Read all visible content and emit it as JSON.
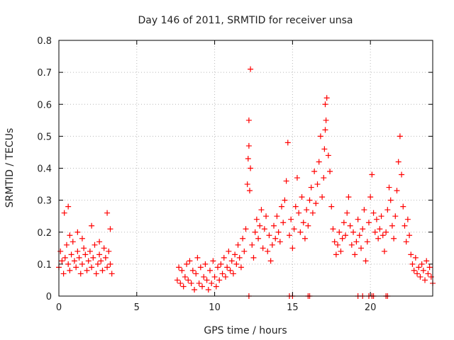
{
  "chart_data": {
    "type": "scatter",
    "title": "Day 146 of 2011, SRMTID for receiver unsa",
    "xlabel": "GPS time / hours",
    "ylabel": "SRMTID / TECUs",
    "xlim": [
      0,
      24
    ],
    "ylim": [
      0,
      0.8
    ],
    "xticks": [
      0,
      5,
      10,
      15,
      20
    ],
    "yticks": [
      0,
      0.1,
      0.2,
      0.3,
      0.4,
      0.5,
      0.6,
      0.7,
      0.8
    ],
    "xtick_labels": [
      "0",
      "5",
      "10",
      "15",
      "20"
    ],
    "ytick_labels": [
      "0",
      "0.1",
      "0.2",
      "0.3",
      "0.4",
      "0.5",
      "0.6",
      "0.7",
      "0.8"
    ],
    "grid": true,
    "marker": "+",
    "color": "#ff0000",
    "series": [
      {
        "name": "SRMTID",
        "x": [
          0.0,
          0.1,
          0.2,
          0.3,
          0.4,
          0.5,
          0.6,
          0.7,
          0.8,
          0.9,
          1.0,
          1.1,
          1.2,
          1.3,
          1.4,
          1.5,
          1.6,
          1.7,
          1.8,
          1.9,
          2.0,
          2.1,
          2.2,
          2.3,
          2.4,
          2.5,
          2.6,
          2.7,
          2.8,
          2.9,
          3.0,
          3.1,
          3.2,
          3.3,
          3.4,
          0.35,
          0.6,
          0.7,
          1.2,
          1.5,
          2.1,
          2.6,
          3.1,
          3.3,
          7.6,
          7.7,
          7.8,
          7.9,
          8.0,
          8.1,
          8.2,
          8.3,
          8.4,
          8.5,
          8.6,
          8.7,
          8.8,
          8.9,
          9.0,
          9.1,
          9.2,
          9.3,
          9.4,
          9.5,
          9.6,
          9.7,
          9.8,
          9.9,
          10.0,
          10.1,
          10.2,
          10.3,
          10.4,
          10.5,
          10.6,
          10.7,
          10.8,
          10.9,
          11.0,
          11.1,
          11.2,
          11.3,
          11.4,
          11.5,
          11.6,
          11.7,
          11.8,
          11.9,
          12.0,
          12.1,
          12.15,
          12.2,
          12.2,
          12.25,
          12.3,
          12.3,
          12.4,
          12.5,
          12.6,
          12.7,
          12.8,
          12.9,
          13.0,
          13.1,
          13.2,
          13.3,
          13.4,
          13.5,
          13.6,
          13.7,
          13.8,
          13.9,
          14.0,
          14.1,
          14.2,
          14.3,
          14.4,
          14.5,
          14.6,
          14.7,
          14.8,
          14.9,
          15.0,
          15.1,
          15.2,
          15.3,
          15.4,
          15.5,
          15.6,
          15.7,
          15.8,
          15.9,
          16.0,
          16.1,
          16.2,
          16.3,
          16.4,
          16.5,
          16.6,
          16.7,
          16.8,
          16.9,
          17.0,
          17.05,
          17.1,
          17.1,
          17.15,
          17.2,
          17.3,
          17.4,
          17.5,
          17.6,
          17.7,
          17.8,
          17.9,
          18.0,
          18.1,
          18.2,
          18.3,
          18.4,
          18.5,
          18.6,
          18.7,
          18.8,
          18.9,
          19.0,
          19.1,
          19.2,
          19.3,
          19.4,
          19.5,
          19.6,
          19.7,
          19.8,
          19.9,
          20.0,
          20.1,
          20.2,
          20.3,
          20.4,
          20.5,
          20.6,
          20.7,
          20.8,
          20.9,
          21.0,
          21.1,
          21.2,
          21.3,
          21.4,
          21.5,
          21.6,
          21.7,
          21.8,
          21.9,
          22.0,
          22.1,
          22.2,
          22.3,
          22.4,
          22.5,
          22.6,
          22.7,
          22.8,
          22.9,
          23.0,
          23.1,
          23.2,
          23.3,
          23.4,
          23.5,
          23.6,
          23.7,
          23.8,
          23.9,
          24.0,
          12.2,
          14.8,
          15.0,
          16.0,
          16.1,
          19.2,
          19.5,
          19.9,
          20.1,
          20.2,
          21.0,
          21.1
        ],
        "y": [
          0.09,
          0.14,
          0.11,
          0.07,
          0.12,
          0.16,
          0.1,
          0.08,
          0.13,
          0.17,
          0.11,
          0.09,
          0.14,
          0.12,
          0.07,
          0.1,
          0.15,
          0.13,
          0.08,
          0.11,
          0.14,
          0.09,
          0.12,
          0.16,
          0.07,
          0.1,
          0.13,
          0.11,
          0.08,
          0.15,
          0.12,
          0.09,
          0.14,
          0.1,
          0.07,
          0.26,
          0.28,
          0.19,
          0.2,
          0.18,
          0.22,
          0.17,
          0.26,
          0.21,
          0.05,
          0.09,
          0.04,
          0.08,
          0.03,
          0.06,
          0.1,
          0.05,
          0.11,
          0.04,
          0.08,
          0.02,
          0.07,
          0.12,
          0.04,
          0.09,
          0.03,
          0.06,
          0.1,
          0.05,
          0.02,
          0.08,
          0.04,
          0.11,
          0.06,
          0.03,
          0.09,
          0.05,
          0.1,
          0.07,
          0.12,
          0.06,
          0.09,
          0.14,
          0.08,
          0.11,
          0.07,
          0.13,
          0.1,
          0.16,
          0.12,
          0.09,
          0.18,
          0.14,
          0.21,
          0.35,
          0.43,
          0.47,
          0.55,
          0.33,
          0.71,
          0.4,
          0.16,
          0.12,
          0.2,
          0.24,
          0.18,
          0.22,
          0.27,
          0.15,
          0.21,
          0.25,
          0.14,
          0.19,
          0.11,
          0.16,
          0.22,
          0.18,
          0.25,
          0.2,
          0.17,
          0.28,
          0.23,
          0.3,
          0.36,
          0.48,
          0.19,
          0.24,
          0.15,
          0.21,
          0.28,
          0.37,
          0.26,
          0.2,
          0.31,
          0.23,
          0.18,
          0.27,
          0.22,
          0.3,
          0.34,
          0.26,
          0.39,
          0.29,
          0.35,
          0.42,
          0.5,
          0.31,
          0.37,
          0.46,
          0.52,
          0.6,
          0.55,
          0.62,
          0.44,
          0.39,
          0.28,
          0.21,
          0.17,
          0.13,
          0.16,
          0.2,
          0.14,
          0.18,
          0.23,
          0.19,
          0.26,
          0.31,
          0.22,
          0.16,
          0.2,
          0.13,
          0.17,
          0.24,
          0.19,
          0.15,
          0.21,
          0.27,
          0.11,
          0.17,
          0.23,
          0.31,
          0.38,
          0.26,
          0.2,
          0.24,
          0.18,
          0.21,
          0.25,
          0.19,
          0.14,
          0.2,
          0.27,
          0.34,
          0.3,
          0.22,
          0.18,
          0.25,
          0.33,
          0.42,
          0.5,
          0.38,
          0.28,
          0.22,
          0.17,
          0.24,
          0.19,
          0.13,
          0.1,
          0.08,
          0.12,
          0.07,
          0.09,
          0.06,
          0.1,
          0.08,
          0.05,
          0.11,
          0.07,
          0.09,
          0.06,
          0.04,
          0.0,
          0.0,
          0.0,
          0.0,
          0.0,
          0.0,
          0.0,
          0.0,
          0.0,
          0.0,
          0.0,
          0.0
        ]
      }
    ]
  }
}
